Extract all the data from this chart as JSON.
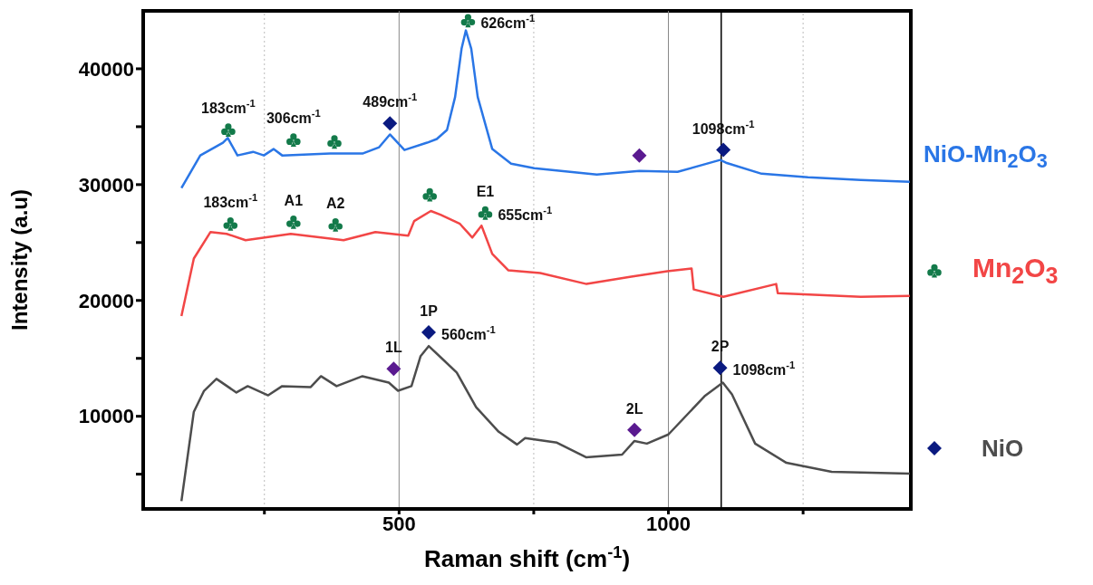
{
  "chart_data": {
    "type": "line",
    "xlabel": "Raman shift (cm$^{-1}$)",
    "ylabel": "Intensity (a.u)",
    "xlim": [
      25,
      1450
    ],
    "ylim": [
      2000,
      45000
    ],
    "xticks": [
      {
        "value": 250,
        "label": null
      },
      500,
      {
        "value": 750,
        "label": null
      },
      1000,
      {
        "value": 1250,
        "label": null
      }
    ],
    "yticks": [
      {
        "value": 5000,
        "label": null
      },
      10000,
      {
        "value": 15000,
        "label": null
      },
      20000,
      {
        "value": 25000,
        "label": null
      },
      30000,
      {
        "value": 35000,
        "label": null
      },
      40000
    ],
    "grid": "x",
    "legend": "right",
    "marker": "none",
    "series": [
      {
        "name": "NiO-Mn$_{2}$O$_{3}$",
        "color": "#2a76e6",
        "x": [
          96,
          131,
          173,
          182,
          200,
          229,
          249,
          267,
          283,
          372,
          432,
          463,
          483,
          510,
          552,
          570,
          589,
          604,
          616,
          624,
          634,
          646,
          673,
          708,
          751,
          867,
          946,
          1017,
          1096,
          1107,
          1173,
          1259,
          1357,
          1448
        ],
        "values": [
          29700,
          32520,
          33620,
          34020,
          32520,
          32830,
          32520,
          33070,
          32520,
          32680,
          32680,
          33230,
          34330,
          32990,
          33620,
          33940,
          34720,
          37560,
          41730,
          43310,
          41730,
          37560,
          33070,
          31810,
          31420,
          30870,
          31180,
          31100,
          32130,
          31890,
          30940,
          30630,
          30390,
          30240
        ]
      },
      {
        "name": "Mn$_{2}$O$_{3}$",
        "color": "#f24646",
        "x": [
          96,
          119,
          150,
          180,
          215,
          299,
          397,
          456,
          517,
          528,
          559,
          577,
          613,
          636,
          653,
          673,
          703,
          762,
          848,
          931,
          998,
          1043,
          1047,
          1102,
          1200,
          1203,
          1357,
          1448
        ],
        "values": [
          18660,
          23620,
          25910,
          25750,
          25200,
          25750,
          25200,
          25910,
          25590,
          26850,
          27720,
          27400,
          26610,
          25430,
          26460,
          24020,
          22600,
          22360,
          21420,
          22050,
          22520,
          22760,
          20950,
          20320,
          21420,
          20630,
          20320,
          20390
        ]
      },
      {
        "name": "NiO",
        "color": "#4d4d4d",
        "x": [
          96,
          119,
          138,
          161,
          198,
          219,
          257,
          283,
          336,
          355,
          384,
          432,
          481,
          498,
          523,
          540,
          555,
          582,
          607,
          643,
          685,
          719,
          734,
          793,
          847,
          914,
          937,
          960,
          1000,
          1067,
          1101,
          1118,
          1161,
          1219,
          1303,
          1448
        ],
        "values": [
          2680,
          10390,
          12200,
          13230,
          12050,
          12600,
          11810,
          12600,
          12520,
          13460,
          12600,
          13460,
          12910,
          12200,
          12600,
          15200,
          16060,
          14880,
          13780,
          10790,
          8660,
          7560,
          8110,
          7720,
          6460,
          6690,
          7870,
          7640,
          8430,
          11730,
          12910,
          11890,
          7640,
          5980,
          5200,
          5040
        ]
      },
      {
        "type": "scatter",
        "color": "#137a4a",
        "x": [
          183,
          304,
          380,
          628,
          557,
          187,
          304,
          382,
          660
        ],
        "values": [
          34720,
          33860,
          33700,
          44170,
          29130,
          26610,
          26770,
          26540,
          27560
        ]
      },
      {
        "type": "scatter",
        "color": "#0a1a80",
        "marker": "diamond",
        "x": [
          483,
          1102,
          555,
          1096
        ],
        "values": [
          35280,
          32990,
          17240,
          14170
        ]
      },
      {
        "type": "scatter",
        "color": "#5a1a90",
        "marker": "diamond",
        "x": [
          946,
          490,
          937
        ],
        "values": [
          32520,
          14090,
          8820
        ]
      }
    ],
    "ref_lines": [
      {
        "axis": "x",
        "value": 1098,
        "color": "#000000"
      }
    ],
    "annotations": [
      {
        "text": "183cm$^{-1}$",
        "x": 183,
        "y": 34720
      },
      {
        "text": "306cm$^{-1}$",
        "x": 304,
        "y": 33860
      },
      {
        "text": "489cm$^{-1}$",
        "x": 483,
        "y": 35280
      },
      {
        "text": "626cm$^{-1}$",
        "x": 628,
        "y": 44170
      },
      {
        "text": "1098cm$^{-1}$",
        "x": 1102,
        "y": 32990
      },
      {
        "text": "183cm$^{-1}$",
        "x": 187,
        "y": 26610
      },
      {
        "text": "A1",
        "x": 304,
        "y": 26770
      },
      {
        "text": "A2",
        "x": 382,
        "y": 26540
      },
      {
        "text": "E1",
        "x": 660,
        "y": 27560
      },
      {
        "text": "655cm$^{-1}$",
        "x": 660,
        "y": 27560
      },
      {
        "text": "1P",
        "x": 555,
        "y": 17240
      },
      {
        "text": "560cm$^{-1}$",
        "x": 555,
        "y": 17240
      },
      {
        "text": "1L",
        "x": 490,
        "y": 14090
      },
      {
        "text": "2L",
        "x": 937,
        "y": 8820
      },
      {
        "text": "2P",
        "x": 1096,
        "y": 14170
      },
      {
        "text": "1098cm$^{-1}$",
        "x": 1096,
        "y": 14170
      }
    ]
  }
}
